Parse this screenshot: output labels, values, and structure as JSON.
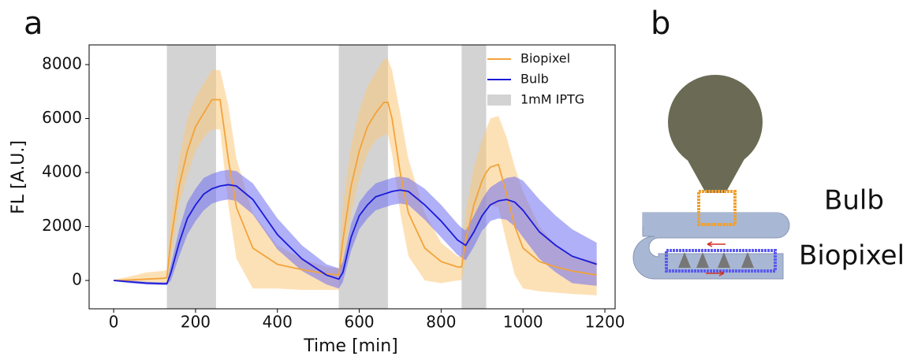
{
  "chart_data": {
    "type": "line",
    "panel_label": "a",
    "x_label": "Time [min]",
    "y_label": "FL [A.U.]",
    "xlim": [
      -60,
      1225
    ],
    "ylim": [
      -1050,
      8730
    ],
    "xticks": [
      0,
      200,
      400,
      600,
      800,
      1000,
      1200
    ],
    "yticks": [
      0,
      2000,
      4000,
      6000,
      8000
    ],
    "legend": "upper right",
    "x": [
      0,
      40,
      80,
      120,
      130,
      140,
      160,
      180,
      200,
      220,
      240,
      250,
      260,
      280,
      300,
      340,
      400,
      460,
      520,
      550,
      560,
      580,
      600,
      620,
      640,
      660,
      670,
      680,
      700,
      720,
      760,
      800,
      840,
      850,
      860,
      880,
      900,
      910,
      920,
      940,
      960,
      980,
      1000,
      1040,
      1080,
      1120,
      1180
    ],
    "series": [
      {
        "name": "Biopixel",
        "color": "#f2a33a",
        "band_color": "#fbc97a",
        "values": [
          0,
          20,
          50,
          80,
          100,
          1500,
          3500,
          4800,
          5700,
          6200,
          6700,
          6700,
          6700,
          4500,
          2700,
          1200,
          600,
          400,
          250,
          200,
          1500,
          3500,
          4800,
          5700,
          6200,
          6600,
          6600,
          6000,
          4000,
          2500,
          1200,
          700,
          500,
          500,
          1500,
          2800,
          3700,
          4000,
          4200,
          4300,
          3200,
          2000,
          1200,
          700,
          500,
          350,
          200
        ],
        "upper": [
          20,
          150,
          300,
          350,
          400,
          2500,
          4500,
          6000,
          6800,
          7300,
          7800,
          7800,
          7800,
          6500,
          4500,
          2500,
          1300,
          800,
          500,
          450,
          2800,
          5000,
          6300,
          7200,
          7700,
          8200,
          8200,
          7800,
          6200,
          4500,
          2500,
          1400,
          900,
          900,
          2500,
          4200,
          5200,
          5600,
          6000,
          6100,
          5300,
          4200,
          3300,
          2000,
          1300,
          900,
          700
        ],
        "lower": [
          -20,
          -50,
          -100,
          -150,
          -150,
          800,
          2800,
          3900,
          4800,
          5300,
          5600,
          5600,
          5600,
          2800,
          800,
          -300,
          -300,
          -350,
          -350,
          -350,
          600,
          2500,
          3800,
          4700,
          5200,
          5400,
          5400,
          4700,
          2500,
          900,
          0,
          -100,
          0,
          0,
          700,
          1800,
          2500,
          2700,
          2800,
          2700,
          1400,
          200,
          -300,
          -400,
          -450,
          -500,
          -550
        ]
      },
      {
        "name": "Bulb",
        "color": "#1a1adb",
        "band_color": "#6f6ff2",
        "values": [
          0,
          -50,
          -100,
          -120,
          -120,
          300,
          1400,
          2300,
          2800,
          3200,
          3400,
          3450,
          3500,
          3550,
          3500,
          3000,
          1700,
          800,
          200,
          50,
          300,
          1600,
          2400,
          2800,
          3100,
          3200,
          3250,
          3300,
          3350,
          3300,
          2800,
          2200,
          1500,
          1400,
          1300,
          1800,
          2400,
          2600,
          2800,
          2950,
          3000,
          2900,
          2600,
          1800,
          1300,
          900,
          600
        ],
        "upper": [
          30,
          0,
          -50,
          -70,
          -70,
          600,
          1900,
          2900,
          3400,
          3800,
          3950,
          4000,
          4050,
          4100,
          4050,
          3600,
          2300,
          1300,
          600,
          450,
          700,
          2100,
          2900,
          3300,
          3600,
          3700,
          3750,
          3800,
          3850,
          3800,
          3400,
          2800,
          2100,
          1950,
          1850,
          2400,
          3000,
          3250,
          3450,
          3650,
          3800,
          3850,
          3700,
          3000,
          2400,
          1900,
          1400
        ],
        "lower": [
          -30,
          -100,
          -150,
          -170,
          -170,
          0,
          900,
          1700,
          2200,
          2600,
          2850,
          2900,
          2950,
          3000,
          2950,
          2450,
          1150,
          350,
          -150,
          -300,
          -50,
          1100,
          1900,
          2300,
          2600,
          2700,
          2750,
          2800,
          2850,
          2800,
          2250,
          1600,
          950,
          850,
          750,
          1250,
          1850,
          2000,
          2200,
          2300,
          2250,
          2000,
          1600,
          800,
          300,
          -100,
          -200
        ]
      }
    ],
    "shaded": {
      "name": "1mM IPTG",
      "color": "#d3d3d3",
      "ranges": [
        [
          130,
          250
        ],
        [
          550,
          670
        ],
        [
          850,
          910
        ]
      ]
    }
  },
  "diagram": {
    "panel_label": "b",
    "labels": [
      "Bulb",
      "Biopixel"
    ]
  }
}
